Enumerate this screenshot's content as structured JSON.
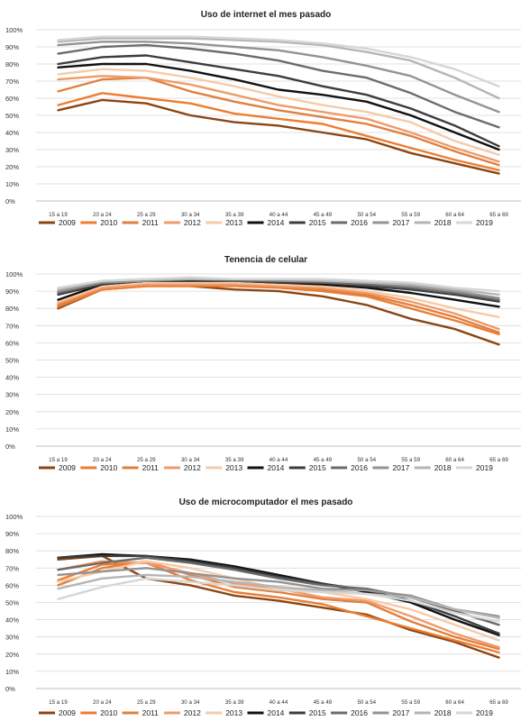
{
  "series_names": [
    "2009",
    "2010",
    "2011",
    "2012",
    "2013",
    "2014",
    "2015",
    "2016",
    "2017",
    "2018",
    "2019"
  ],
  "colors": [
    "#8B4513",
    "#ED7D31",
    "#E0803F",
    "#EF9B6A",
    "#F6CBA8",
    "#111111",
    "#3D3D3D",
    "#6B6B6B",
    "#939393",
    "#B5B5B5",
    "#D6D6D6"
  ],
  "categories": [
    "15 a 19",
    "20 a 24",
    "25 a 29",
    "30 a 34",
    "35 a 39",
    "40 a 44",
    "45 a 49",
    "50 a 54",
    "55 a 59",
    "60 a 64",
    "65 a 69"
  ],
  "y_ticks": [
    "0%",
    "10%",
    "20%",
    "30%",
    "40%",
    "50%",
    "60%",
    "70%",
    "80%",
    "90%",
    "100%"
  ],
  "chart_data": [
    {
      "type": "line",
      "title": "Uso de internet el mes pasado",
      "ylim": [
        0,
        100
      ],
      "series": [
        {
          "name": "2009",
          "values": [
            53,
            59,
            57,
            50,
            46,
            44,
            40,
            36,
            28,
            22,
            16
          ]
        },
        {
          "name": "2010",
          "values": [
            56,
            63,
            60,
            57,
            51,
            48,
            45,
            38,
            31,
            24,
            18
          ]
        },
        {
          "name": "2011",
          "values": [
            64,
            71,
            72,
            64,
            58,
            53,
            49,
            45,
            38,
            29,
            21
          ]
        },
        {
          "name": "2012",
          "values": [
            71,
            73,
            72,
            68,
            62,
            56,
            52,
            48,
            40,
            31,
            23
          ]
        },
        {
          "name": "2013",
          "values": [
            74,
            77,
            76,
            72,
            67,
            61,
            56,
            52,
            46,
            35,
            27
          ]
        },
        {
          "name": "2014",
          "values": [
            78,
            80,
            80,
            76,
            71,
            65,
            62,
            58,
            50,
            40,
            30
          ]
        },
        {
          "name": "2015",
          "values": [
            80,
            84,
            85,
            81,
            77,
            73,
            67,
            62,
            54,
            44,
            32
          ]
        },
        {
          "name": "2016",
          "values": [
            86,
            90,
            91,
            89,
            86,
            82,
            76,
            72,
            63,
            52,
            43
          ]
        },
        {
          "name": "2017",
          "values": [
            91,
            93,
            93,
            92,
            90,
            88,
            84,
            79,
            73,
            62,
            52
          ]
        },
        {
          "name": "2018",
          "values": [
            93,
            95,
            95,
            95,
            94,
            93,
            91,
            87,
            82,
            72,
            60
          ]
        },
        {
          "name": "2019",
          "values": [
            94,
            96,
            96,
            96,
            95,
            94,
            92,
            89,
            84,
            77,
            67
          ]
        }
      ]
    },
    {
      "type": "line",
      "title": "Tenencia de celular",
      "ylim": [
        0,
        100
      ],
      "series": [
        {
          "name": "2009",
          "values": [
            80,
            91,
            93,
            93,
            91,
            90,
            87,
            82,
            74,
            68,
            59
          ]
        },
        {
          "name": "2010",
          "values": [
            81,
            91,
            93,
            93,
            93,
            92,
            90,
            87,
            80,
            73,
            65
          ]
        },
        {
          "name": "2011",
          "values": [
            82,
            92,
            94,
            94,
            94,
            93,
            91,
            88,
            82,
            75,
            66
          ]
        },
        {
          "name": "2012",
          "values": [
            83,
            92,
            94,
            94,
            94,
            93,
            92,
            89,
            84,
            77,
            68
          ]
        },
        {
          "name": "2013",
          "values": [
            84,
            93,
            95,
            95,
            95,
            94,
            93,
            90,
            86,
            80,
            75
          ]
        },
        {
          "name": "2014",
          "values": [
            85,
            94,
            96,
            96,
            96,
            95,
            94,
            92,
            89,
            85,
            81
          ]
        },
        {
          "name": "2015",
          "values": [
            88,
            94,
            96,
            96,
            96,
            95,
            95,
            93,
            91,
            88,
            84
          ]
        },
        {
          "name": "2016",
          "values": [
            89,
            95,
            96,
            97,
            96,
            96,
            95,
            94,
            92,
            89,
            85
          ]
        },
        {
          "name": "2017",
          "values": [
            90,
            95,
            96,
            97,
            97,
            96,
            96,
            95,
            93,
            90,
            86
          ]
        },
        {
          "name": "2018",
          "values": [
            91,
            96,
            97,
            97,
            97,
            97,
            96,
            95,
            94,
            91,
            88
          ]
        },
        {
          "name": "2019",
          "values": [
            92,
            96,
            97,
            98,
            97,
            97,
            97,
            96,
            95,
            92,
            90
          ]
        }
      ]
    },
    {
      "type": "line",
      "title": "Uso de microcomputador el mes pasado",
      "ylim": [
        0,
        100
      ],
      "series": [
        {
          "name": "2009",
          "values": [
            75,
            77,
            64,
            60,
            54,
            51,
            47,
            43,
            34,
            27,
            18
          ]
        },
        {
          "name": "2010",
          "values": [
            63,
            72,
            73,
            63,
            56,
            53,
            49,
            42,
            35,
            28,
            21
          ]
        },
        {
          "name": "2011",
          "values": [
            60,
            70,
            74,
            66,
            59,
            56,
            52,
            50,
            39,
            30,
            23
          ]
        },
        {
          "name": "2012",
          "values": [
            69,
            74,
            73,
            67,
            61,
            58,
            53,
            51,
            42,
            32,
            24
          ]
        },
        {
          "name": "2013",
          "values": [
            62,
            68,
            74,
            70,
            64,
            58,
            56,
            52,
            46,
            37,
            28
          ]
        },
        {
          "name": "2014",
          "values": [
            76,
            78,
            77,
            75,
            71,
            66,
            61,
            56,
            50,
            40,
            31
          ]
        },
        {
          "name": "2015",
          "values": [
            76,
            77,
            77,
            74,
            70,
            65,
            61,
            57,
            51,
            42,
            32
          ]
        },
        {
          "name": "2016",
          "values": [
            69,
            73,
            76,
            73,
            69,
            64,
            60,
            58,
            53,
            45,
            37
          ]
        },
        {
          "name": "2017",
          "values": [
            66,
            68,
            70,
            67,
            64,
            62,
            58,
            57,
            54,
            46,
            42
          ]
        },
        {
          "name": "2018",
          "values": [
            58,
            64,
            66,
            65,
            62,
            59,
            57,
            55,
            53,
            46,
            41
          ]
        },
        {
          "name": "2019",
          "values": [
            52,
            59,
            64,
            62,
            60,
            57,
            56,
            55,
            51,
            44,
            39
          ]
        }
      ]
    }
  ]
}
